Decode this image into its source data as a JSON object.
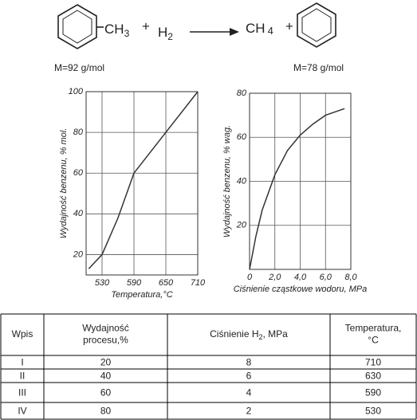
{
  "reaction": {
    "reactant": {
      "text": "CH",
      "sub": "3"
    },
    "plus1": "+",
    "h2": {
      "text": "H",
      "sub": "2"
    },
    "product": {
      "text": "CH",
      "sub": "4"
    },
    "plus2": "+",
    "m1": "M=92 g/mol",
    "m2": "M=78 g/mol"
  },
  "chart_data": [
    {
      "type": "line",
      "ylabel": "Wydajność benzenu, % mol.",
      "xlabel": "Temperatura,°C",
      "x": [
        505,
        530,
        560,
        590,
        650,
        710
      ],
      "values": [
        13,
        20,
        38,
        60,
        80,
        100
      ],
      "color": "#333333",
      "xlim": [
        500,
        710
      ],
      "ylim": [
        10,
        100
      ],
      "xticks": [
        530,
        590,
        650,
        710
      ],
      "yticks": [
        20,
        40,
        60,
        80,
        100
      ],
      "grid": true
    },
    {
      "type": "line",
      "ylabel": "Wydajność benzenu, % wag.",
      "xlabel": "Ciśnienie cząstkowe wodoru, MPa",
      "x": [
        0,
        0.5,
        1,
        2,
        3,
        4,
        5,
        6,
        7,
        7.5
      ],
      "values": [
        0,
        15,
        27,
        43,
        54,
        61,
        66,
        70,
        72,
        73
      ],
      "color": "#333333",
      "xlim": [
        0,
        8
      ],
      "ylim": [
        0,
        80
      ],
      "xticks": [
        0,
        {
          "value": 2,
          "label": "2,0"
        },
        {
          "value": 4,
          "label": "4,0"
        },
        {
          "value": 6,
          "label": "6,0"
        },
        {
          "value": 8,
          "label": "8,0"
        }
      ],
      "yticks": [
        20,
        40,
        60,
        80
      ],
      "grid": true
    }
  ],
  "table": {
    "header": [
      "Wpis",
      [
        "Wydajność",
        "procesu,%"
      ],
      {
        "text": "Ciśnienie H",
        "sub": "2",
        "rest": ", MPa"
      },
      [
        "Temperatura,",
        "°C"
      ]
    ],
    "rows": [
      [
        "I",
        20,
        8,
        710
      ],
      [
        "II",
        40,
        6,
        630
      ],
      [
        "III",
        60,
        4,
        590
      ],
      [
        "IV",
        80,
        2,
        530
      ]
    ]
  }
}
